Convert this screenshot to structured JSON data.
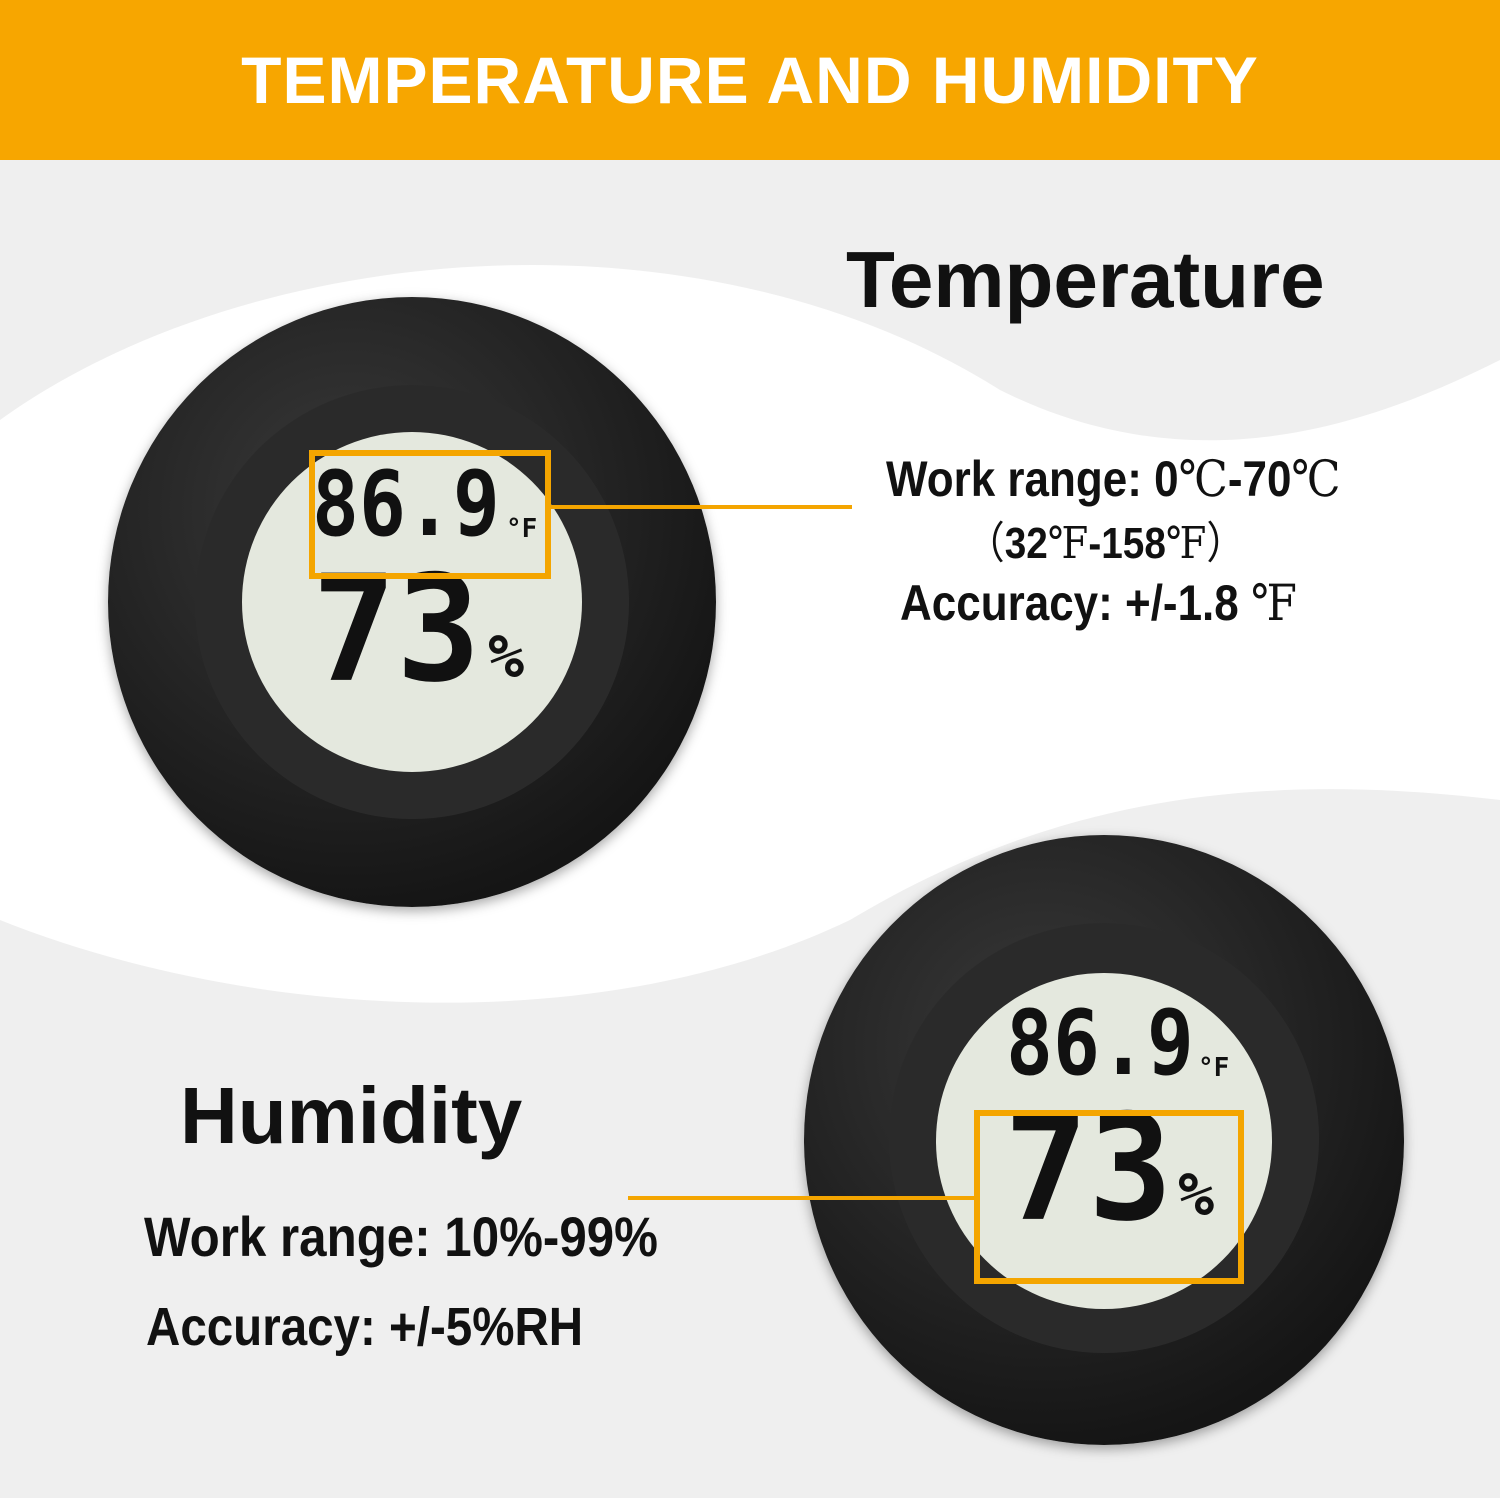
{
  "banner": {
    "title": "TEMPERATURE AND HUMIDITY",
    "color": "#f7a600"
  },
  "display": {
    "temperature": "86.9",
    "temp_unit": "°F",
    "humidity": "73",
    "humidity_unit": "%"
  },
  "temperature": {
    "heading": "Temperature",
    "range_label": "Work range: ",
    "range_c_low": "0",
    "unit_c": "℃",
    "range_c_high": "-70",
    "range_f_open": "（",
    "range_f_low": "32",
    "unit_f": "℉",
    "range_f_high": "-158",
    "range_f_close": "）",
    "accuracy_label": "Accuracy: +/-1.8 ",
    "accuracy_unit": "℉"
  },
  "humidity": {
    "heading": "Humidity",
    "range": "Work range: 10%-99%",
    "accuracy": "Accuracy: +/-5%RH"
  },
  "highlight_color": "#f4a500"
}
